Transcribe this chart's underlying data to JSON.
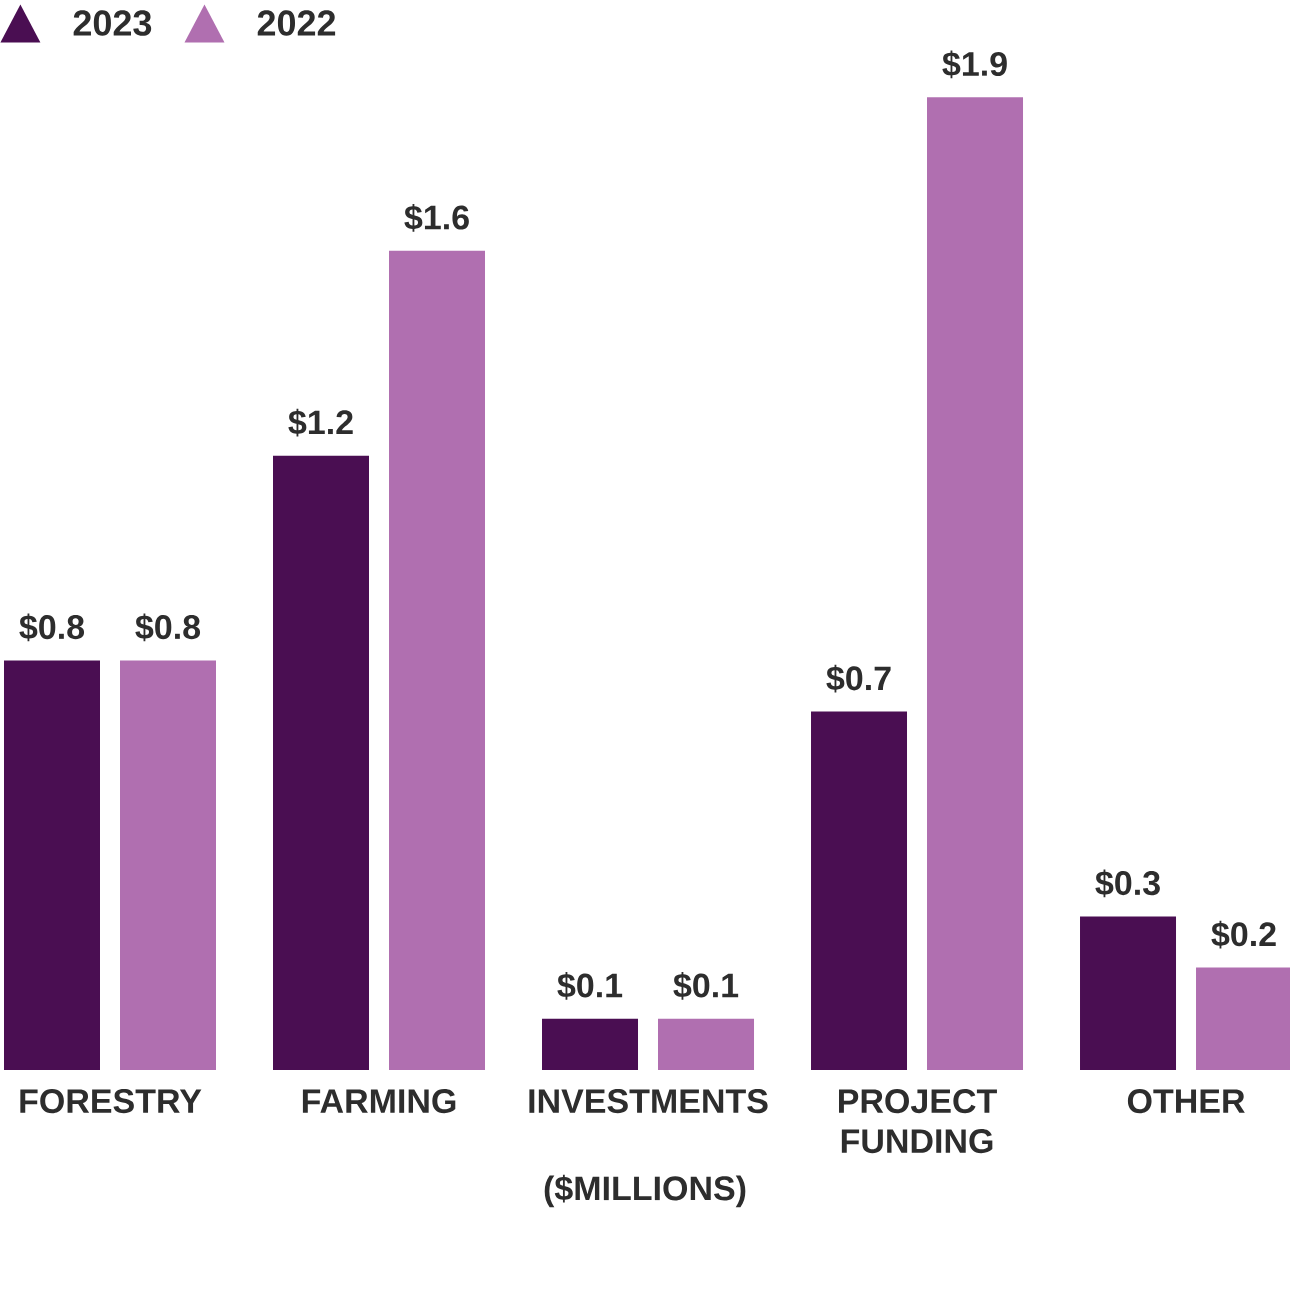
{
  "chart_data": {
    "type": "bar",
    "xlabel": "($MILLIONS)",
    "legend": "top left",
    "categories": [
      "FORESTRY",
      "FARMING",
      "INVESTMENTS",
      "PROJECT FUNDING",
      "OTHER"
    ],
    "series": [
      {
        "name": "2023",
        "color": "#4a0e52",
        "values": [
          0.8,
          1.2,
          0.1,
          0.7,
          0.3
        ],
        "value_labels": [
          "$0.8",
          "$1.2",
          "$0.1",
          "$0.7",
          "$0.3"
        ]
      },
      {
        "name": "2022",
        "color": "#b06fb0",
        "values": [
          0.8,
          1.6,
          0.1,
          1.9,
          0.2
        ],
        "value_labels": [
          "$0.8",
          "$1.6",
          "$0.1",
          "$1.9",
          "$0.2"
        ]
      }
    ]
  }
}
